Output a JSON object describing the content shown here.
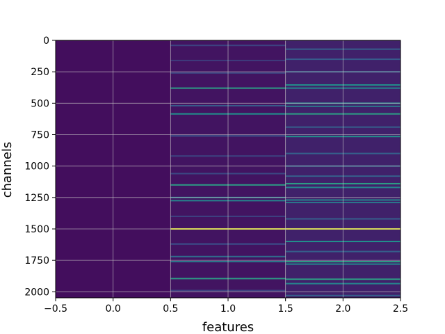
{
  "chart_data": {
    "type": "heatmap",
    "title": "",
    "xlabel": "features",
    "ylabel": "channels",
    "xlim": [
      -0.5,
      2.5
    ],
    "ylim": [
      2048,
      0
    ],
    "x_ticks": [
      -0.5,
      0.0,
      0.5,
      1.0,
      1.5,
      2.0,
      2.5
    ],
    "x_tick_labels": [
      "−0.5",
      "0.0",
      "0.5",
      "1.0",
      "1.5",
      "2.0",
      "2.5"
    ],
    "y_ticks": [
      0,
      250,
      500,
      750,
      1000,
      1250,
      1500,
      1750,
      2000
    ],
    "y_tick_labels": [
      "0",
      "250",
      "500",
      "750",
      "1000",
      "1250",
      "1500",
      "1750",
      "2000"
    ],
    "grid": true,
    "colormap": "viridis",
    "value_range": [
      0,
      1
    ],
    "columns": [
      {
        "feature": 0,
        "base_level": 0.04,
        "stripes": []
      },
      {
        "feature": 1,
        "base_level": 0.06,
        "stripes": [
          {
            "channel": 40,
            "value": 0.2
          },
          {
            "channel": 160,
            "value": 0.18
          },
          {
            "channel": 260,
            "value": 0.2
          },
          {
            "channel": 380,
            "value": 0.55
          },
          {
            "channel": 520,
            "value": 0.28
          },
          {
            "channel": 585,
            "value": 0.5
          },
          {
            "channel": 760,
            "value": 0.25
          },
          {
            "channel": 920,
            "value": 0.2
          },
          {
            "channel": 1060,
            "value": 0.22
          },
          {
            "channel": 1150,
            "value": 0.55
          },
          {
            "channel": 1250,
            "value": 0.4
          },
          {
            "channel": 1275,
            "value": 0.45
          },
          {
            "channel": 1400,
            "value": 0.2
          },
          {
            "channel": 1500,
            "value": 0.95
          },
          {
            "channel": 1620,
            "value": 0.25
          },
          {
            "channel": 1720,
            "value": 0.35
          },
          {
            "channel": 1760,
            "value": 0.4
          },
          {
            "channel": 1895,
            "value": 0.55
          },
          {
            "channel": 1990,
            "value": 0.2
          }
        ]
      },
      {
        "feature": 2,
        "base_level": 0.1,
        "stripes": [
          {
            "channel": 70,
            "value": 0.3
          },
          {
            "channel": 150,
            "value": 0.28
          },
          {
            "channel": 250,
            "value": 0.3
          },
          {
            "channel": 355,
            "value": 0.5
          },
          {
            "channel": 380,
            "value": 0.45
          },
          {
            "channel": 500,
            "value": 0.45
          },
          {
            "channel": 525,
            "value": 0.4
          },
          {
            "channel": 585,
            "value": 0.55
          },
          {
            "channel": 690,
            "value": 0.3
          },
          {
            "channel": 765,
            "value": 0.5
          },
          {
            "channel": 900,
            "value": 0.3
          },
          {
            "channel": 1000,
            "value": 0.32
          },
          {
            "channel": 1080,
            "value": 0.3
          },
          {
            "channel": 1140,
            "value": 0.55
          },
          {
            "channel": 1170,
            "value": 0.45
          },
          {
            "channel": 1270,
            "value": 0.45
          },
          {
            "channel": 1290,
            "value": 0.4
          },
          {
            "channel": 1420,
            "value": 0.3
          },
          {
            "channel": 1500,
            "value": 0.95
          },
          {
            "channel": 1600,
            "value": 0.5
          },
          {
            "channel": 1680,
            "value": 0.3
          },
          {
            "channel": 1760,
            "value": 0.55
          },
          {
            "channel": 1780,
            "value": 0.45
          },
          {
            "channel": 1900,
            "value": 0.55
          },
          {
            "channel": 1935,
            "value": 0.45
          },
          {
            "channel": 2030,
            "value": 0.3
          }
        ]
      }
    ]
  }
}
